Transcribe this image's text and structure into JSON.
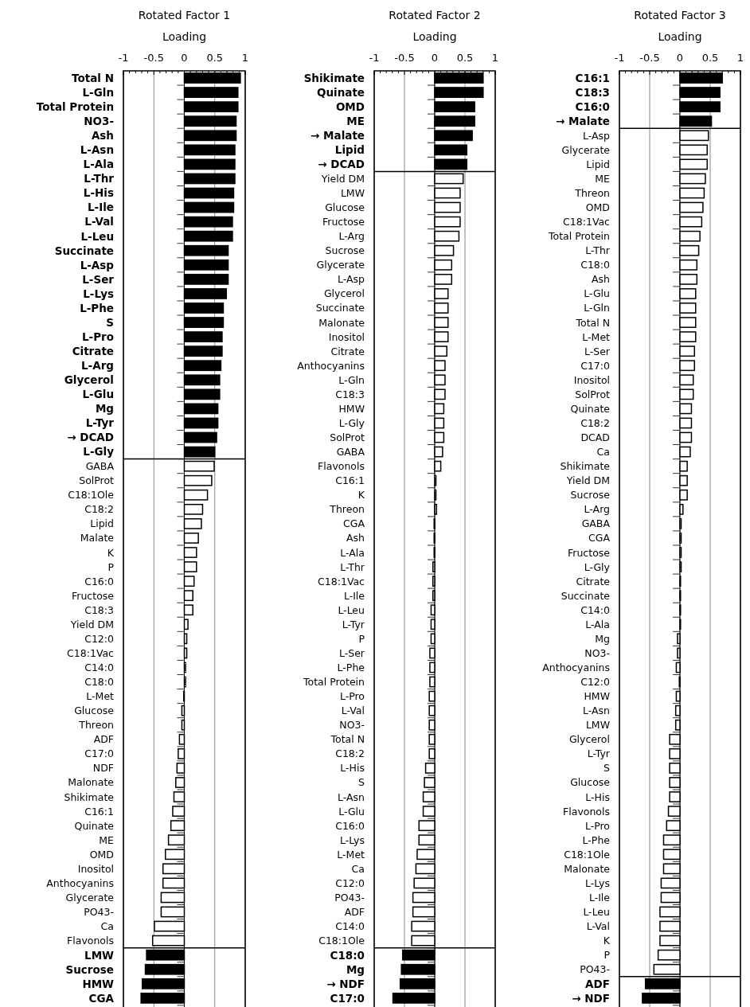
{
  "chart_data": [
    {
      "type": "bar",
      "orientation": "horizontal",
      "title": "Rotated Factor 1",
      "xlabel": "Loading",
      "xlim": [
        -1,
        1
      ],
      "xticks": [
        -1,
        -0.5,
        0,
        0.5,
        1
      ],
      "grid": "x",
      "categories": [
        "Total N",
        "L-Gln",
        "Total Protein",
        "NO3-",
        "Ash",
        "L-Asn",
        "L-Ala",
        "L-Thr",
        "L-His",
        "L-Ile",
        "L-Val",
        "L-Leu",
        "Succinate",
        "L-Asp",
        "L-Ser",
        "L-Lys",
        "L-Phe",
        "S",
        "L-Pro",
        "Citrate",
        "L-Arg",
        "Glycerol",
        "L-Glu",
        "Mg",
        "L-Tyr",
        "→ DCAD",
        "L-Gly",
        "GABA",
        "SolProt",
        "C18:1Ole",
        "C18:2",
        "Lipid",
        "Malate",
        "K",
        "P",
        "C16:0",
        "Fructose",
        "C18:3",
        "Yield DM",
        "C12:0",
        "C18:1Vac",
        "C14:0",
        "C18:0",
        "L-Met",
        "Glucose",
        "Threon",
        "ADF",
        "C17:0",
        "NDF",
        "Malonate",
        "Shikimate",
        "C16:1",
        "Quinate",
        "ME",
        "OMD",
        "Inositol",
        "Anthocyanins",
        "Glycerate",
        "PO43-",
        "Ca",
        "Flavonols",
        "LMW",
        "Sucrose",
        "HMW",
        "CGA"
      ],
      "values": [
        0.92,
        0.88,
        0.88,
        0.85,
        0.85,
        0.83,
        0.83,
        0.83,
        0.81,
        0.81,
        0.79,
        0.79,
        0.72,
        0.72,
        0.72,
        0.69,
        0.64,
        0.64,
        0.62,
        0.62,
        0.6,
        0.58,
        0.58,
        0.55,
        0.55,
        0.53,
        0.5,
        0.49,
        0.45,
        0.38,
        0.3,
        0.28,
        0.23,
        0.2,
        0.2,
        0.16,
        0.14,
        0.14,
        0.06,
        0.04,
        0.04,
        0.02,
        0.02,
        -0.01,
        -0.04,
        -0.04,
        -0.08,
        -0.1,
        -0.12,
        -0.14,
        -0.17,
        -0.19,
        -0.22,
        -0.26,
        -0.31,
        -0.35,
        -0.35,
        -0.38,
        -0.38,
        -0.49,
        -0.52,
        -0.62,
        -0.64,
        -0.69,
        -0.71
      ],
      "colors": [
        "#000000",
        "#000000",
        "#000000",
        "#000000",
        "#000000",
        "#000000",
        "#000000",
        "#000000",
        "#000000",
        "#000000",
        "#000000",
        "#000000",
        "#000000",
        "#000000",
        "#000000",
        "#000000",
        "#000000",
        "#000000",
        "#000000",
        "#000000",
        "#000000",
        "#000000",
        "#000000",
        "#000000",
        "#000000",
        "#000000",
        "#000000",
        "#ffffff",
        "#ffffff",
        "#ffffff",
        "#ffffff",
        "#ffffff",
        "#ffffff",
        "#ffffff",
        "#ffffff",
        "#ffffff",
        "#ffffff",
        "#ffffff",
        "#ffffff",
        "#ffffff",
        "#ffffff",
        "#ffffff",
        "#ffffff",
        "#ffffff",
        "#ffffff",
        "#ffffff",
        "#ffffff",
        "#ffffff",
        "#ffffff",
        "#ffffff",
        "#ffffff",
        "#ffffff",
        "#ffffff",
        "#ffffff",
        "#ffffff",
        "#ffffff",
        "#ffffff",
        "#ffffff",
        "#ffffff",
        "#ffffff",
        "#ffffff",
        "#000000",
        "#000000",
        "#000000",
        "#000000"
      ]
    },
    {
      "type": "bar",
      "orientation": "horizontal",
      "title": "Rotated Factor 2",
      "xlabel": "Loading",
      "xlim": [
        -1,
        1
      ],
      "xticks": [
        -1,
        -0.5,
        0,
        0.5,
        1
      ],
      "grid": "x",
      "categories": [
        "Shikimate",
        "Quinate",
        "OMD",
        "ME",
        "→ Malate",
        "Lipid",
        "→ DCAD",
        "Yield DM",
        "LMW",
        "Glucose",
        "Fructose",
        "L-Arg",
        "Sucrose",
        "Glycerate",
        "L-Asp",
        "Glycerol",
        "Succinate",
        "Malonate",
        "Inositol",
        "Citrate",
        "Anthocyanins",
        "L-Gln",
        "C18:3",
        "HMW",
        "L-Gly",
        "SolProt",
        "GABA",
        "Flavonols",
        "C16:1",
        "K",
        "Threon",
        "CGA",
        "Ash",
        "L-Ala",
        "L-Thr",
        "C18:1Vac",
        "L-Ile",
        "L-Leu",
        "L-Tyr",
        "P",
        "L-Ser",
        "L-Phe",
        "Total Protein",
        "L-Pro",
        "L-Val",
        "NO3-",
        "Total N",
        "C18:2",
        "L-His",
        "S",
        "L-Asn",
        "L-Glu",
        "C16:0",
        "L-Lys",
        "L-Met",
        "Ca",
        "C12:0",
        "PO43-",
        "ADF",
        "C14:0",
        "C18:1Ole",
        "C18:0",
        "Mg",
        "→ NDF",
        "C17:0"
      ],
      "values": [
        0.8,
        0.8,
        0.66,
        0.66,
        0.62,
        0.53,
        0.53,
        0.47,
        0.42,
        0.42,
        0.42,
        0.4,
        0.31,
        0.28,
        0.28,
        0.22,
        0.22,
        0.22,
        0.22,
        0.2,
        0.17,
        0.17,
        0.17,
        0.15,
        0.15,
        0.15,
        0.13,
        0.1,
        0.02,
        0.02,
        0.03,
        -0.01,
        -0.01,
        -0.01,
        -0.03,
        -0.03,
        -0.03,
        -0.06,
        -0.06,
        -0.06,
        -0.08,
        -0.08,
        -0.08,
        -0.09,
        -0.09,
        -0.09,
        -0.09,
        -0.09,
        -0.15,
        -0.17,
        -0.19,
        -0.19,
        -0.26,
        -0.26,
        -0.29,
        -0.31,
        -0.34,
        -0.36,
        -0.36,
        -0.38,
        -0.38,
        -0.53,
        -0.55,
        -0.57,
        -0.69
      ],
      "colors": [
        "#000000",
        "#000000",
        "#000000",
        "#000000",
        "#000000",
        "#000000",
        "#000000",
        "#ffffff",
        "#ffffff",
        "#ffffff",
        "#ffffff",
        "#ffffff",
        "#ffffff",
        "#ffffff",
        "#ffffff",
        "#ffffff",
        "#ffffff",
        "#ffffff",
        "#ffffff",
        "#ffffff",
        "#ffffff",
        "#ffffff",
        "#ffffff",
        "#ffffff",
        "#ffffff",
        "#ffffff",
        "#ffffff",
        "#ffffff",
        "#ffffff",
        "#ffffff",
        "#ffffff",
        "#ffffff",
        "#ffffff",
        "#ffffff",
        "#ffffff",
        "#ffffff",
        "#ffffff",
        "#ffffff",
        "#ffffff",
        "#ffffff",
        "#ffffff",
        "#ffffff",
        "#ffffff",
        "#ffffff",
        "#ffffff",
        "#ffffff",
        "#ffffff",
        "#ffffff",
        "#ffffff",
        "#ffffff",
        "#ffffff",
        "#ffffff",
        "#ffffff",
        "#ffffff",
        "#ffffff",
        "#ffffff",
        "#ffffff",
        "#ffffff",
        "#ffffff",
        "#ffffff",
        "#ffffff",
        "#000000",
        "#000000",
        "#000000",
        "#000000"
      ]
    },
    {
      "type": "bar",
      "orientation": "horizontal",
      "title": "Rotated Factor 3",
      "xlabel": "Loading",
      "xlim": [
        -1,
        1
      ],
      "xticks": [
        -1,
        -0.5,
        0,
        0.5,
        1
      ],
      "grid": "x",
      "categories": [
        "C16:1",
        "C18:3",
        "C16:0",
        "→ Malate",
        "L-Asp",
        "Glycerate",
        "Lipid",
        "ME",
        "Threon",
        "OMD",
        "C18:1Vac",
        "Total Protein",
        "L-Thr",
        "C18:0",
        "Ash",
        "L-Glu",
        "L-Gln",
        "Total N",
        "L-Met",
        "L-Ser",
        "C17:0",
        "Inositol",
        "SolProt",
        "Quinate",
        "C18:2",
        "DCAD",
        "Ca",
        "Shikimate",
        "Yield DM",
        "Sucrose",
        "L-Arg",
        "GABA",
        "CGA",
        "Fructose",
        "L-Gly",
        "Citrate",
        "Succinate",
        "C14:0",
        "L-Ala",
        "Mg",
        "NO3-",
        "Anthocyanins",
        "C12:0",
        "HMW",
        "L-Asn",
        "LMW",
        "Glycerol",
        "L-Tyr",
        "S",
        "Glucose",
        "L-His",
        "Flavonols",
        "L-Pro",
        "L-Phe",
        "C18:1Ole",
        "Malonate",
        "L-Lys",
        "L-Ile",
        "L-Leu",
        "L-Val",
        "K",
        "P",
        "PO43-",
        "ADF",
        "→ NDF"
      ],
      "values": [
        0.7,
        0.66,
        0.66,
        0.52,
        0.47,
        0.45,
        0.45,
        0.42,
        0.4,
        0.38,
        0.36,
        0.33,
        0.31,
        0.28,
        0.28,
        0.26,
        0.26,
        0.26,
        0.26,
        0.24,
        0.24,
        0.22,
        0.22,
        0.19,
        0.19,
        0.19,
        0.17,
        0.12,
        0.12,
        0.12,
        0.05,
        0.02,
        0.02,
        0.02,
        0.02,
        0.01,
        0.01,
        0.01,
        0.01,
        -0.04,
        -0.04,
        -0.06,
        -0.01,
        -0.06,
        -0.07,
        -0.07,
        -0.17,
        -0.17,
        -0.17,
        -0.17,
        -0.17,
        -0.19,
        -0.22,
        -0.27,
        -0.27,
        -0.27,
        -0.31,
        -0.31,
        -0.33,
        -0.33,
        -0.33,
        -0.36,
        -0.43,
        -0.57,
        -0.62
      ],
      "colors": [
        "#000000",
        "#000000",
        "#000000",
        "#000000",
        "#ffffff",
        "#ffffff",
        "#ffffff",
        "#ffffff",
        "#ffffff",
        "#ffffff",
        "#ffffff",
        "#ffffff",
        "#ffffff",
        "#ffffff",
        "#ffffff",
        "#ffffff",
        "#ffffff",
        "#ffffff",
        "#ffffff",
        "#ffffff",
        "#ffffff",
        "#ffffff",
        "#ffffff",
        "#ffffff",
        "#ffffff",
        "#ffffff",
        "#ffffff",
        "#ffffff",
        "#ffffff",
        "#ffffff",
        "#ffffff",
        "#ffffff",
        "#ffffff",
        "#ffffff",
        "#ffffff",
        "#ffffff",
        "#ffffff",
        "#ffffff",
        "#ffffff",
        "#ffffff",
        "#ffffff",
        "#ffffff",
        "#ffffff",
        "#ffffff",
        "#ffffff",
        "#ffffff",
        "#ffffff",
        "#ffffff",
        "#ffffff",
        "#ffffff",
        "#ffffff",
        "#ffffff",
        "#ffffff",
        "#ffffff",
        "#ffffff",
        "#ffffff",
        "#ffffff",
        "#ffffff",
        "#ffffff",
        "#ffffff",
        "#ffffff",
        "#ffffff",
        "#ffffff",
        "#000000",
        "#000000"
      ]
    }
  ]
}
